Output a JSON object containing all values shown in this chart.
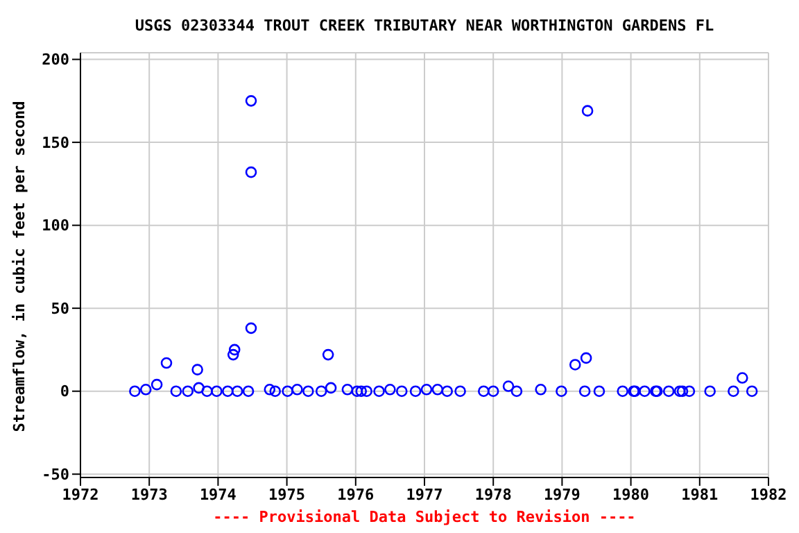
{
  "chart_data": {
    "type": "scatter",
    "title": "USGS 02303344 TROUT CREEK TRIBUTARY NEAR WORTHINGTON GARDENS FL",
    "ylabel": "Streamflow, in cubic feet per second",
    "annotations": [
      "---- Provisional Data Subject to Revision ----"
    ],
    "x": [
      1972.79,
      1972.95,
      1973.11,
      1973.25,
      1973.39,
      1973.56,
      1973.7,
      1973.72,
      1973.84,
      1973.98,
      1974.14,
      1974.22,
      1974.24,
      1974.28,
      1974.44,
      1974.48,
      1974.48,
      1974.48,
      1974.75,
      1974.83,
      1975.01,
      1975.15,
      1975.31,
      1975.5,
      1975.6,
      1975.64,
      1975.88,
      1976.02,
      1976.08,
      1976.16,
      1976.34,
      1976.5,
      1976.67,
      1976.87,
      1977.03,
      1977.19,
      1977.33,
      1977.52,
      1977.86,
      1978.0,
      1978.22,
      1978.34,
      1978.69,
      1978.99,
      1979.19,
      1979.33,
      1979.35,
      1979.37,
      1979.54,
      1979.88,
      1980.04,
      1980.06,
      1980.2,
      1980.36,
      1980.38,
      1980.55,
      1980.71,
      1980.75,
      1980.85,
      1981.15,
      1981.49,
      1981.62,
      1981.76
    ],
    "series": [
      {
        "color": "#0000ff",
        "values": [
          0,
          1,
          4,
          17,
          0,
          0,
          13,
          2,
          0,
          0,
          0,
          22,
          25,
          0,
          0,
          175,
          132,
          38,
          1,
          0,
          0,
          1,
          0,
          0,
          22,
          2,
          1,
          0,
          0,
          0,
          0,
          1,
          0,
          0,
          1,
          1,
          0,
          0,
          0,
          0,
          3,
          0,
          1,
          0,
          16,
          0,
          20,
          169,
          0,
          0,
          0,
          0,
          0,
          0,
          0,
          0,
          0,
          0,
          0,
          0,
          0,
          8,
          0
        ]
      }
    ],
    "xlim": [
      1972,
      1982
    ],
    "xticks": [
      1972,
      1973,
      1974,
      1975,
      1976,
      1977,
      1978,
      1979,
      1980,
      1981,
      1982
    ],
    "ylim": [
      -52,
      204
    ],
    "yticks": [
      -50,
      0,
      50,
      100,
      150,
      200
    ],
    "grid": true,
    "marker": "circle"
  }
}
